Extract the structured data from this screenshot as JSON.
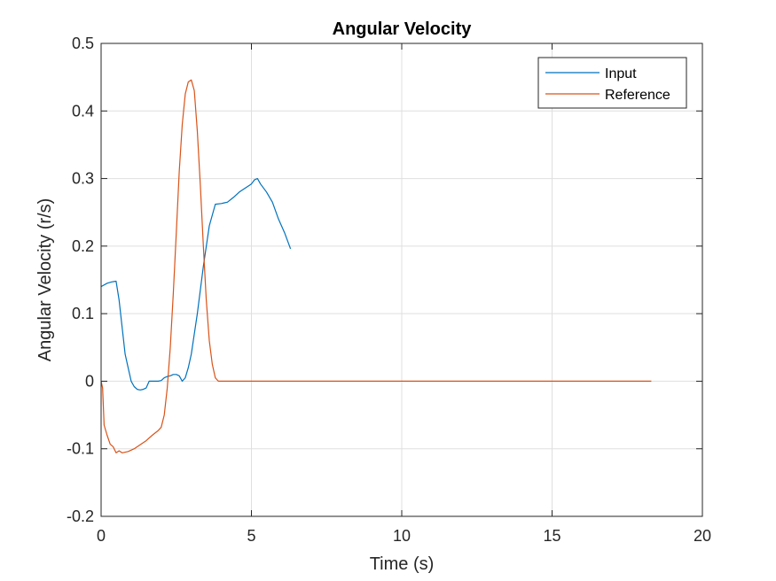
{
  "chart_data": {
    "type": "line",
    "title": "Angular Velocity",
    "xlabel": "Time (s)",
    "ylabel": "Angular Velocity (r/s)",
    "xlim": [
      0,
      20
    ],
    "ylim": [
      -0.2,
      0.5
    ],
    "xticks": [
      0,
      5,
      10,
      15,
      20
    ],
    "xtick_labels": [
      "0",
      "5",
      "10",
      "15",
      "20"
    ],
    "yticks": [
      -0.2,
      -0.1,
      0,
      0.1,
      0.2,
      0.3,
      0.4,
      0.5
    ],
    "ytick_labels": [
      "-0.2",
      "-0.1",
      "0",
      "0.1",
      "0.2",
      "0.3",
      "0.4",
      "0.5"
    ],
    "grid": true,
    "legend_position": "top-right",
    "series": [
      {
        "name": "Input",
        "color": "#0072BD",
        "x": [
          0,
          0.2,
          0.35,
          0.5,
          0.6,
          0.7,
          0.8,
          0.9,
          1.0,
          1.1,
          1.2,
          1.3,
          1.4,
          1.5,
          1.6,
          1.7,
          1.9,
          2.0,
          2.1,
          2.2,
          2.3,
          2.4,
          2.5,
          2.6,
          2.7,
          2.8,
          2.9,
          3.0,
          3.2,
          3.4,
          3.6,
          3.8,
          4.0,
          4.1,
          4.2,
          4.4,
          4.6,
          4.8,
          5.0,
          5.1,
          5.2,
          5.3,
          5.5,
          5.7,
          5.9,
          6.1,
          6.3
        ],
        "y": [
          0.14,
          0.145,
          0.147,
          0.148,
          0.12,
          0.08,
          0.04,
          0.02,
          0.0,
          -0.008,
          -0.012,
          -0.013,
          -0.012,
          -0.01,
          0.0,
          0.0,
          0.0,
          0.001,
          0.005,
          0.007,
          0.008,
          0.01,
          0.01,
          0.008,
          0.0,
          0.005,
          0.02,
          0.04,
          0.1,
          0.17,
          0.23,
          0.262,
          0.263,
          0.264,
          0.265,
          0.272,
          0.28,
          0.286,
          0.292,
          0.298,
          0.3,
          0.292,
          0.28,
          0.265,
          0.24,
          0.22,
          0.196
        ]
      },
      {
        "name": "Reference",
        "color": "#D95319",
        "x": [
          0,
          0.05,
          0.1,
          0.2,
          0.3,
          0.4,
          0.5,
          0.6,
          0.7,
          0.9,
          1.1,
          1.3,
          1.5,
          1.7,
          1.9,
          2.0,
          2.1,
          2.2,
          2.3,
          2.4,
          2.5,
          2.6,
          2.7,
          2.8,
          2.9,
          3.0,
          3.1,
          3.2,
          3.3,
          3.4,
          3.5,
          3.6,
          3.7,
          3.8,
          3.9,
          4.0,
          6,
          10,
          14,
          18.3
        ],
        "y": [
          0.0,
          -0.01,
          -0.065,
          -0.08,
          -0.093,
          -0.097,
          -0.106,
          -0.103,
          -0.106,
          -0.104,
          -0.1,
          -0.094,
          -0.088,
          -0.08,
          -0.073,
          -0.068,
          -0.05,
          -0.01,
          0.05,
          0.13,
          0.22,
          0.31,
          0.38,
          0.425,
          0.443,
          0.446,
          0.43,
          0.37,
          0.29,
          0.2,
          0.12,
          0.06,
          0.025,
          0.005,
          0.0,
          0.0,
          0.0,
          0.0,
          0.0,
          0.0
        ]
      }
    ]
  }
}
